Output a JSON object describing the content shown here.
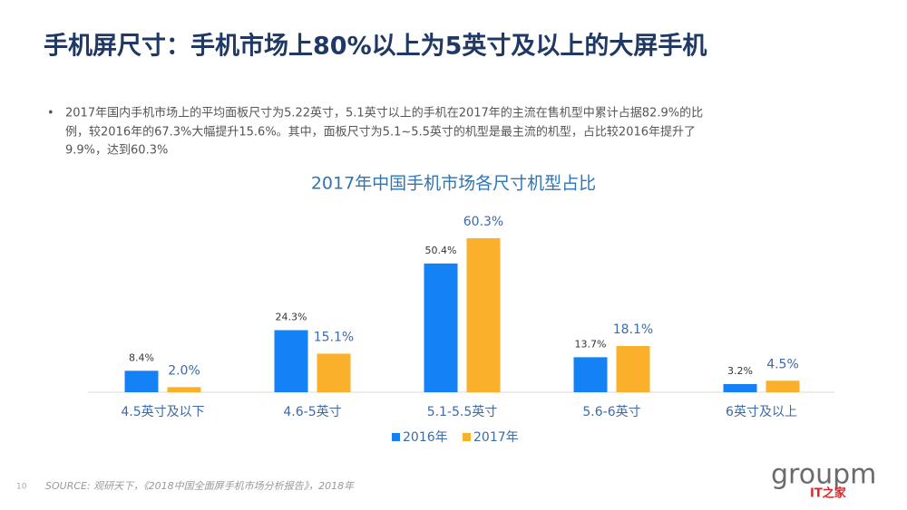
{
  "slide": {
    "title": "手机屏尺寸：手机市场上80%以上为5英寸及以上的大屏手机",
    "bullet_lines": [
      "2017年国内手机市场上的平均面板尺寸为5.22英寸，5.1英寸以上的手机在2017年的主流在售机型中累计占据82.9%的比",
      "例，较2016年的67.3%大幅提升15.6%。其中，面板尺寸为5.1~5.5英寸的机型是最主流的机型，占比较2016年提升了",
      "9.9%，达到60.3%"
    ],
    "source": "SOURCE: 观研天下，《2018中国全面屏手机市场分析报告》，2018年",
    "page_number": "10",
    "logo": "groupm",
    "logo_sub": "IT之家"
  },
  "chart_data": {
    "type": "bar",
    "title": "2017年中国手机市场各尺寸机型占比",
    "categories": [
      "4.5英寸及以下",
      "4.6-5英寸",
      "5.1-5.5英寸",
      "5.6-6英寸",
      "6英寸及以上"
    ],
    "series": [
      {
        "name": "2016年",
        "color": "#1482f5",
        "values": [
          8.4,
          24.3,
          50.4,
          13.7,
          3.2
        ],
        "value_labels": [
          "8.4%",
          "24.3%",
          "50.4%",
          "13.7%",
          "3.2%"
        ]
      },
      {
        "name": "2017年",
        "color": "#fbb02b",
        "values": [
          2.0,
          15.1,
          60.3,
          18.1,
          4.5
        ],
        "value_labels": [
          "2.0%",
          "15.1%",
          "60.3%",
          "18.1%",
          "4.5%"
        ]
      }
    ],
    "legend": "bottom"
  }
}
